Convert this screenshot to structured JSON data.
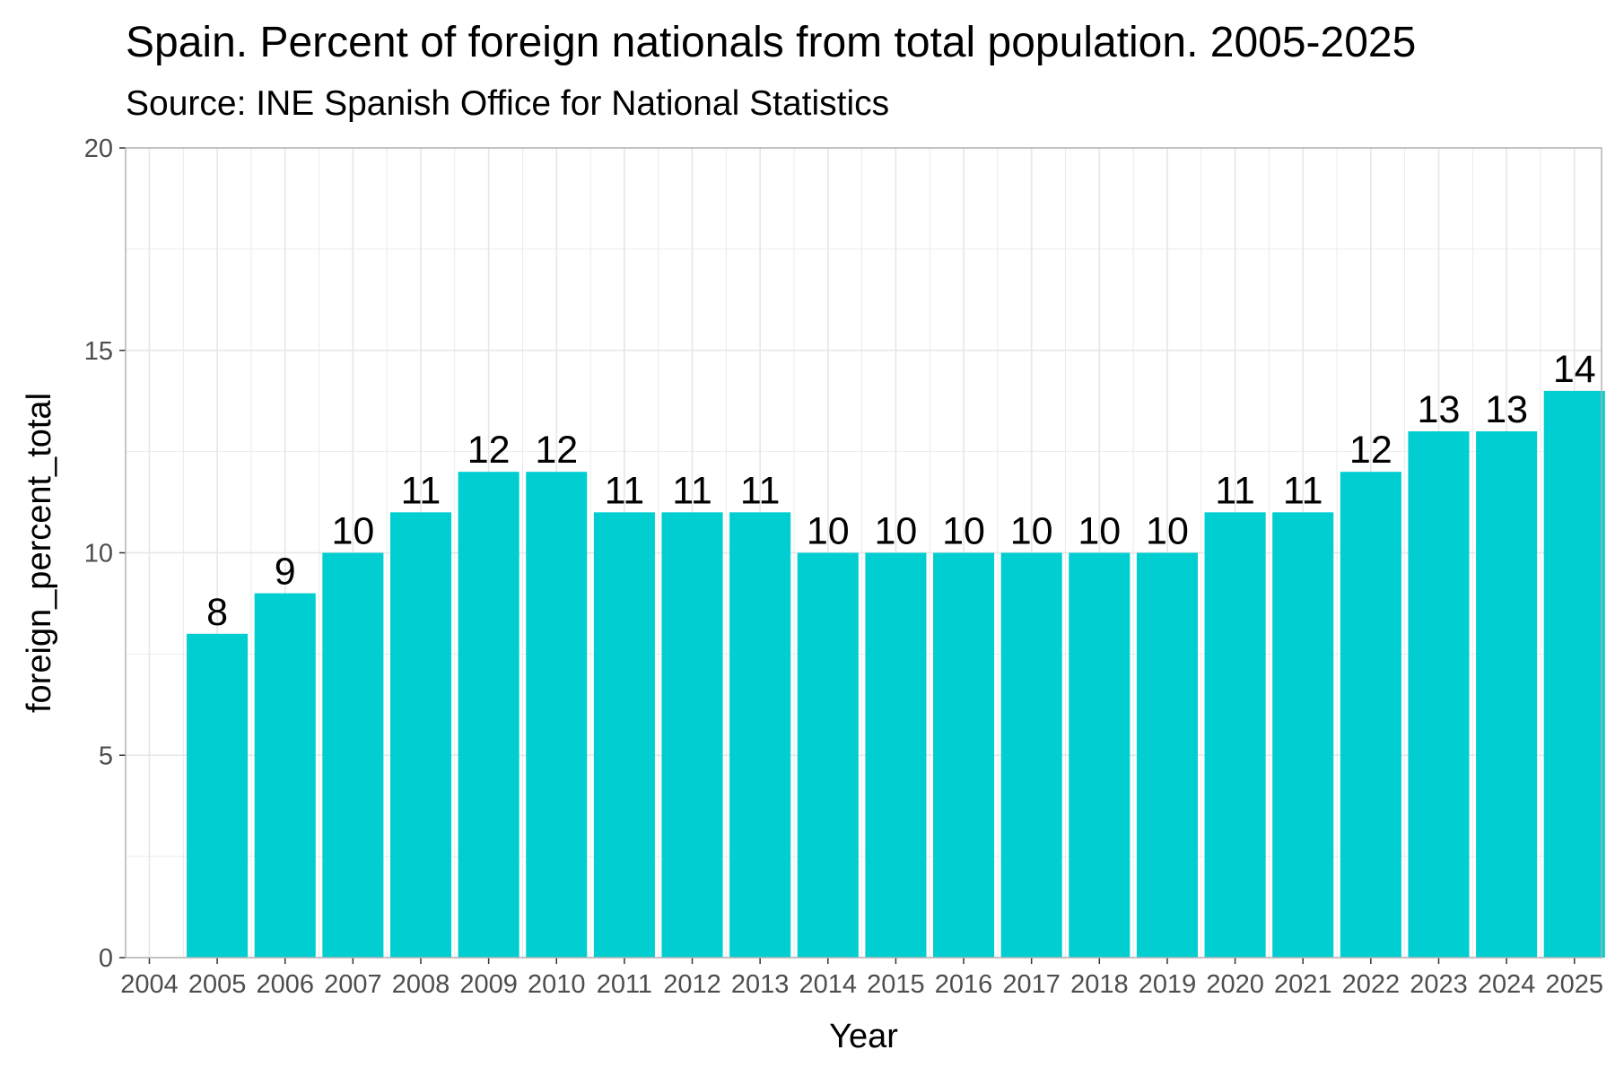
{
  "chart_data": {
    "type": "bar",
    "title": "Spain. Percent of foreign nationals from total population. 2005-2025",
    "subtitle": "Source: INE Spanish Office for National Statistics",
    "xlabel": "Year",
    "ylabel": "foreign_percent_total",
    "categories": [
      "2005",
      "2006",
      "2007",
      "2008",
      "2009",
      "2010",
      "2011",
      "2012",
      "2013",
      "2014",
      "2015",
      "2016",
      "2017",
      "2018",
      "2019",
      "2020",
      "2021",
      "2022",
      "2023",
      "2024",
      "2025"
    ],
    "values": [
      8,
      9,
      10,
      11,
      12,
      12,
      11,
      11,
      11,
      10,
      10,
      10,
      10,
      10,
      10,
      11,
      11,
      12,
      13,
      13,
      14
    ],
    "data_labels": [
      "8",
      "9",
      "10",
      "11",
      "12",
      "12",
      "11",
      "11",
      "11",
      "10",
      "10",
      "10",
      "10",
      "10",
      "10",
      "11",
      "11",
      "12",
      "13",
      "13",
      "14"
    ],
    "x_tick_labels": [
      "2004",
      "2005",
      "2006",
      "2007",
      "2008",
      "2009",
      "2010",
      "2011",
      "2012",
      "2013",
      "2014",
      "2015",
      "2016",
      "2017",
      "2018",
      "2019",
      "2020",
      "2021",
      "2022",
      "2023",
      "2024",
      "2025"
    ],
    "y_tick_labels": [
      "0",
      "5",
      "10",
      "15",
      "20"
    ],
    "ylim": [
      0,
      20
    ],
    "xlim": [
      2003.65,
      2025.4
    ],
    "grid": true,
    "legend": "none",
    "bar_color": "#00CED1",
    "grid_color": "#e6e6e6",
    "frame_color": "#b3b3b3"
  }
}
